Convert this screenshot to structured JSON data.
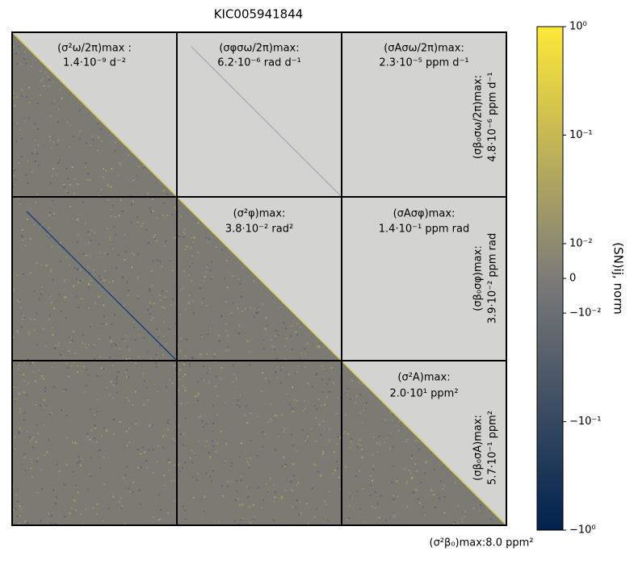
{
  "chart_data": {
    "type": "heatmap",
    "title": "KIC005941844",
    "annotations": [
      {
        "label": "(σ²ω/2π)max :",
        "value": "1.4·10⁻⁹ d⁻²"
      },
      {
        "label": "(σφσω/2π)max:",
        "value": "6.2·10⁻⁶ rad d⁻¹"
      },
      {
        "label": "(σAσω/2π)max:",
        "value": "2.3·10⁻⁵ ppm d⁻¹"
      },
      {
        "label": "(σβ₀σω/2π)max:",
        "value": "4.8·10⁻⁶ ppm d⁻¹"
      },
      {
        "label": "(σ²φ)max:",
        "value": "3.8·10⁻² rad²"
      },
      {
        "label": "(σAσφ)max:",
        "value": "1.4·10⁻¹ ppm rad"
      },
      {
        "label": "(σβ₀σφ)max:",
        "value": "3.9·10⁻² ppm rad"
      },
      {
        "label": "(σ²A)max:",
        "value": "2.0·10¹ ppm²"
      },
      {
        "label": "(σβ₀σA)max:",
        "value": "5.7·10⁻¹ ppm²"
      },
      {
        "label": "(σ²β₀)max:8.0 ppm²"
      }
    ],
    "colorbar_label": "(SN)ij, norm",
    "clim": [
      -1,
      1
    ],
    "scale": "symlog",
    "linthresh": 0.01,
    "colormap": [
      "#00224e",
      "#7c7b78",
      "#fee838"
    ],
    "cticks": [
      {
        "value": 1,
        "label": "10⁰"
      },
      {
        "value": 0.1,
        "label": "10⁻¹"
      },
      {
        "value": 0.01,
        "label": "10⁻²"
      },
      0,
      {
        "value": -0.01,
        "label": "−10⁻²"
      },
      {
        "value": -0.1,
        "label": "−10⁻¹"
      },
      {
        "value": -1,
        "label": "−10⁰"
      }
    ]
  }
}
